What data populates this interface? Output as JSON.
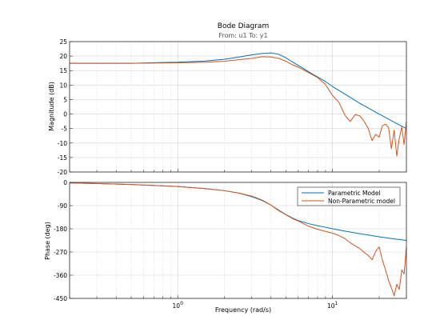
{
  "chart_data": {
    "type": "line",
    "title": "Bode Diagram",
    "subtitle": "From: u1  To: y1",
    "xlabel": "Frequency  (rad/s)",
    "x_scale": "log",
    "xlim": [
      0.2,
      30
    ],
    "x_tick_labels": [
      {
        "value": 1,
        "base": "10",
        "exp": "0"
      },
      {
        "value": 10,
        "base": "10",
        "exp": "1"
      }
    ],
    "grid": true,
    "legend_position": "top-right",
    "panels": [
      {
        "id": "magnitude",
        "ylabel": "Magnitude (dB)",
        "ylim": [
          -20,
          25
        ],
        "yticks": [
          -20,
          -15,
          -10,
          -5,
          0,
          5,
          10,
          15,
          20,
          25
        ],
        "series": [
          {
            "name": "Parametric Model",
            "color": "#0072BD",
            "x": [
              0.2,
              0.5,
              0.8,
              1.0,
              1.5,
              2.0,
              2.5,
              3.0,
              3.5,
              4.0,
              4.5,
              5.0,
              5.5,
              6.0,
              7.0,
              8.0,
              9.0,
              10.0,
              12.0,
              15.0,
              20.0,
              25.0,
              30.0
            ],
            "y": [
              17.5,
              17.5,
              17.8,
              17.9,
              18.3,
              18.9,
              19.7,
              20.4,
              20.9,
              21.1,
              20.6,
              19.4,
              18.0,
              16.8,
              14.6,
              12.8,
              11.2,
              9.5,
              6.9,
              3.7,
              0.0,
              -2.8,
              -5.0
            ]
          },
          {
            "name": "Non-Parametric model",
            "color": "#D95319",
            "x": [
              0.2,
              0.5,
              1.0,
              1.5,
              2.0,
              2.5,
              3.0,
              3.5,
              4.0,
              4.5,
              5.0,
              5.5,
              6.0,
              7.0,
              8.0,
              9.0,
              10.0,
              11.0,
              12.0,
              13.0,
              14.0,
              15.0,
              16.0,
              17.0,
              18.0,
              19.0,
              20.0,
              21.0,
              22.0,
              23.0,
              24.0,
              25.0,
              26.0,
              27.0,
              28.0,
              29.0,
              30.0
            ],
            "y": [
              17.5,
              17.5,
              17.7,
              17.9,
              18.2,
              18.8,
              19.2,
              19.8,
              19.7,
              19.2,
              18.2,
              17.0,
              16.2,
              14.3,
              12.6,
              10.2,
              6.4,
              4.0,
              -0.3,
              -2.6,
              -0.2,
              -0.6,
              -2.5,
              -5.0,
              -9.2,
              -7.0,
              -8.0,
              -4.0,
              -3.5,
              -4.6,
              -12.0,
              -5.5,
              -14.5,
              -8.3,
              -4.5,
              -10.5,
              -2.5
            ]
          }
        ]
      },
      {
        "id": "phase",
        "ylabel": "Phase (deg)",
        "ylim": [
          -450,
          0
        ],
        "yticks": [
          -450,
          -360,
          -270,
          -180,
          -90,
          0
        ],
        "series": [
          {
            "name": "Parametric Model",
            "color": "#0072BD",
            "x": [
              0.2,
              0.5,
              1.0,
              1.5,
              2.0,
              2.5,
              3.0,
              3.5,
              4.0,
              4.5,
              5.0,
              5.5,
              6.0,
              7.0,
              8.0,
              9.0,
              10.0,
              12.0,
              15.0,
              20.0,
              25.0,
              30.0
            ],
            "y": [
              -2,
              -8,
              -16,
              -24,
              -32,
              -42,
              -55,
              -70,
              -88,
              -108,
              -125,
              -138,
              -148,
              -160,
              -168,
              -174,
              -180,
              -189,
              -199,
              -211,
              -219,
              -225
            ]
          },
          {
            "name": "Non-Parametric model",
            "color": "#D95319",
            "x": [
              0.2,
              0.5,
              1.0,
              1.5,
              2.0,
              2.5,
              3.0,
              3.5,
              4.0,
              4.5,
              5.0,
              5.5,
              6.0,
              7.0,
              8.0,
              9.0,
              10.0,
              11.0,
              12.0,
              13.0,
              14.0,
              15.0,
              16.0,
              17.0,
              18.0,
              19.0,
              20.0,
              21.0,
              22.0,
              23.0,
              24.0,
              25.0,
              26.0,
              27.0,
              28.0,
              29.0,
              30.0
            ],
            "y": [
              -2,
              -8,
              -16,
              -24,
              -32,
              -42,
              -53,
              -68,
              -88,
              -110,
              -126,
              -140,
              -150,
              -170,
              -182,
              -190,
              -197,
              -206,
              -218,
              -234,
              -246,
              -257,
              -272,
              -283,
              -300,
              -268,
              -250,
              -302,
              -340,
              -380,
              -410,
              -440,
              -395,
              -415,
              -340,
              -355,
              -250
            ]
          }
        ]
      }
    ]
  }
}
